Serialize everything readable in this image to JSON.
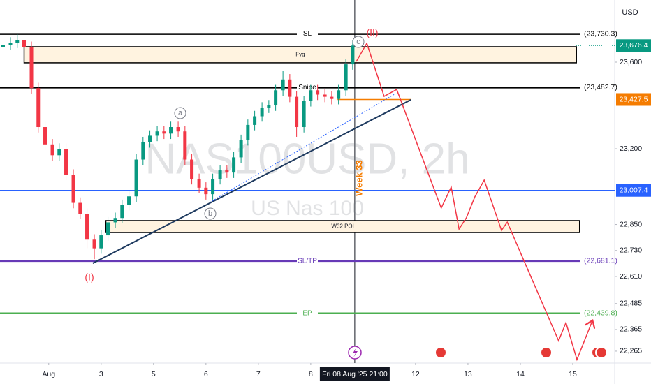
{
  "chart_data": {
    "type": "candlestick",
    "currency": "USD",
    "watermark": [
      "NAS100USD, 2h",
      "US Nas 100"
    ],
    "up_color": "#089981",
    "down_color": "#f23645",
    "xlim": [
      -0.93,
      10.8
    ],
    "ylim": [
      22210,
      23887
    ],
    "grid": false,
    "xticks": [
      {
        "value": 0,
        "label": "Aug"
      },
      {
        "value": 1,
        "label": "3"
      },
      {
        "value": 2,
        "label": "5"
      },
      {
        "value": 3,
        "label": "6"
      },
      {
        "value": 4,
        "label": "7"
      },
      {
        "value": 5,
        "label": "8"
      },
      {
        "value": 7,
        "label": "12"
      },
      {
        "value": 8,
        "label": "13"
      },
      {
        "value": 9,
        "label": "14"
      },
      {
        "value": 10,
        "label": "15"
      }
    ],
    "yticks": [
      {
        "value": 23600,
        "label": "23,600"
      },
      {
        "value": 23200,
        "label": "23,200"
      },
      {
        "value": 22850,
        "label": "22,850"
      },
      {
        "value": 22730,
        "label": "22,730"
      },
      {
        "value": 22610,
        "label": "22,610"
      },
      {
        "value": 22485,
        "label": "22,485"
      },
      {
        "value": 22365,
        "label": "22,365"
      },
      {
        "value": 22265,
        "label": "22,265"
      }
    ],
    "crosshair": {
      "x": 5.84,
      "label": "Fri 08 Aug '25 21:00"
    },
    "x": [
      -0.87,
      -0.73,
      -0.6,
      -0.47,
      -0.33,
      -0.2,
      -0.07,
      0.07,
      0.2,
      0.33,
      0.47,
      0.6,
      0.73,
      0.87,
      1,
      1.13,
      1.27,
      1.4,
      1.53,
      1.67,
      1.8,
      1.93,
      2.07,
      2.2,
      2.33,
      2.47,
      2.6,
      2.73,
      2.87,
      3,
      3.13,
      3.27,
      3.4,
      3.53,
      3.67,
      3.8,
      3.93,
      4.07,
      4.2,
      4.33,
      4.47,
      4.6,
      4.73,
      4.87,
      5,
      5.13,
      5.27,
      5.4,
      5.53,
      5.67,
      5.8
    ],
    "open": [
      23670,
      23680,
      23690,
      23700,
      23670,
      23480,
      23300,
      23220,
      23170,
      23200,
      23080,
      22950,
      22900,
      22780,
      22740,
      22800,
      22860,
      22880,
      22940,
      22980,
      23150,
      23230,
      23260,
      23280,
      23270,
      23300,
      23280,
      23150,
      23060,
      23020,
      22990,
      23060,
      23100,
      23090,
      23160,
      23240,
      23310,
      23350,
      23390,
      23400,
      23470,
      23520,
      23440,
      23300,
      23420,
      23470,
      23450,
      23440,
      23430,
      23470,
      23590
    ],
    "high": [
      23705,
      23715,
      23730,
      23725,
      23695,
      23505,
      23325,
      23245,
      23225,
      23225,
      23105,
      22975,
      22925,
      22805,
      22825,
      22885,
      22905,
      22965,
      23005,
      23175,
      23255,
      23285,
      23305,
      23305,
      23325,
      23325,
      23305,
      23175,
      23085,
      23045,
      23085,
      23125,
      23125,
      23185,
      23265,
      23335,
      23375,
      23415,
      23425,
      23495,
      23560,
      23545,
      23465,
      23445,
      23495,
      23495,
      23475,
      23465,
      23495,
      23615,
      23700
    ],
    "low": [
      23645,
      23655,
      23665,
      23645,
      23455,
      23275,
      23195,
      23145,
      23145,
      23055,
      22925,
      22875,
      22740,
      22690,
      22715,
      22775,
      22835,
      22855,
      22915,
      22955,
      23125,
      23205,
      23235,
      23245,
      23245,
      23255,
      23125,
      23035,
      22995,
      22965,
      22965,
      23035,
      23065,
      23065,
      23135,
      23215,
      23285,
      23325,
      23365,
      23375,
      23445,
      23415,
      23255,
      23275,
      23395,
      23425,
      23415,
      23405,
      23405,
      23445,
      23565
    ],
    "close": [
      23680,
      23690,
      23700,
      23670,
      23480,
      23300,
      23220,
      23170,
      23200,
      23080,
      22950,
      22900,
      22780,
      22740,
      22800,
      22860,
      22880,
      22940,
      22980,
      23150,
      23230,
      23260,
      23280,
      23270,
      23300,
      23280,
      23150,
      23060,
      23020,
      22990,
      23060,
      23100,
      23090,
      23160,
      23240,
      23310,
      23350,
      23390,
      23400,
      23470,
      23520,
      23440,
      23300,
      23420,
      23470,
      23450,
      23440,
      23430,
      23470,
      23590,
      23676.4
    ],
    "last_price_label": "23,676.4",
    "last_price_color": "#089981",
    "zones": [
      {
        "name": "Fvg",
        "top": 23671,
        "bottom": 23597,
        "span": [
          -0.47,
          10.07
        ]
      },
      {
        "name": "W32 POI",
        "top": 22868,
        "bottom": 22813,
        "span": [
          1.09,
          10.13
        ]
      }
    ],
    "levels": [
      {
        "name": "SL",
        "value": 23730.3,
        "label": "(23,730.3)",
        "color": "#000000"
      },
      {
        "name": "Snipe",
        "value": 23482.7,
        "label": "(23,482.7)",
        "color": "#000000"
      },
      {
        "value": 23427.5,
        "label": "23,427.5",
        "color": "#f57c00",
        "span": [
          5.51,
          6.91
        ]
      },
      {
        "value": 23007.4,
        "label": "23,007.4",
        "color": "#2962ff"
      },
      {
        "name": "SL/TP",
        "value": 22681.1,
        "label": "(22,681.1)",
        "color": "#673ab7"
      },
      {
        "name": "EP",
        "value": 22439.8,
        "label": "(22,439.8)",
        "color": "#4caf50"
      }
    ],
    "trendlines": [
      {
        "x": [
          0.84,
          6.91
        ],
        "values": [
          22671,
          23426
        ],
        "color": "#1e3a5f",
        "style": "solid"
      },
      {
        "x": [
          3.07,
          6.6
        ],
        "values": [
          22952,
          23452
        ],
        "color": "#2962ff",
        "style": "dotted"
      }
    ],
    "projection": {
      "color": "#f23645",
      "x": [
        5.87,
        6.07,
        6.4,
        6.64,
        7.49,
        7.68,
        7.83,
        7.97,
        8.13,
        8.31,
        8.64,
        8.75,
        9.73,
        9.87,
        10.08,
        10.37
      ],
      "values": [
        23603,
        23687,
        23442,
        23474,
        22926,
        23023,
        22829,
        22881,
        22977,
        23055,
        22823,
        22861,
        22313,
        22397,
        22226,
        22403
      ]
    },
    "annotations": [
      {
        "text": "(I)",
        "color": "#f23645"
      },
      {
        "text": "a",
        "color": "#787b86",
        "circled": true
      },
      {
        "text": "b",
        "color": "#787b86",
        "circled": true
      },
      {
        "text": "c",
        "color": "#787b86",
        "circled": true
      },
      {
        "text": "(II)",
        "color": "#f23645"
      },
      {
        "text": "Week 33",
        "color": "#f57c00"
      }
    ]
  }
}
